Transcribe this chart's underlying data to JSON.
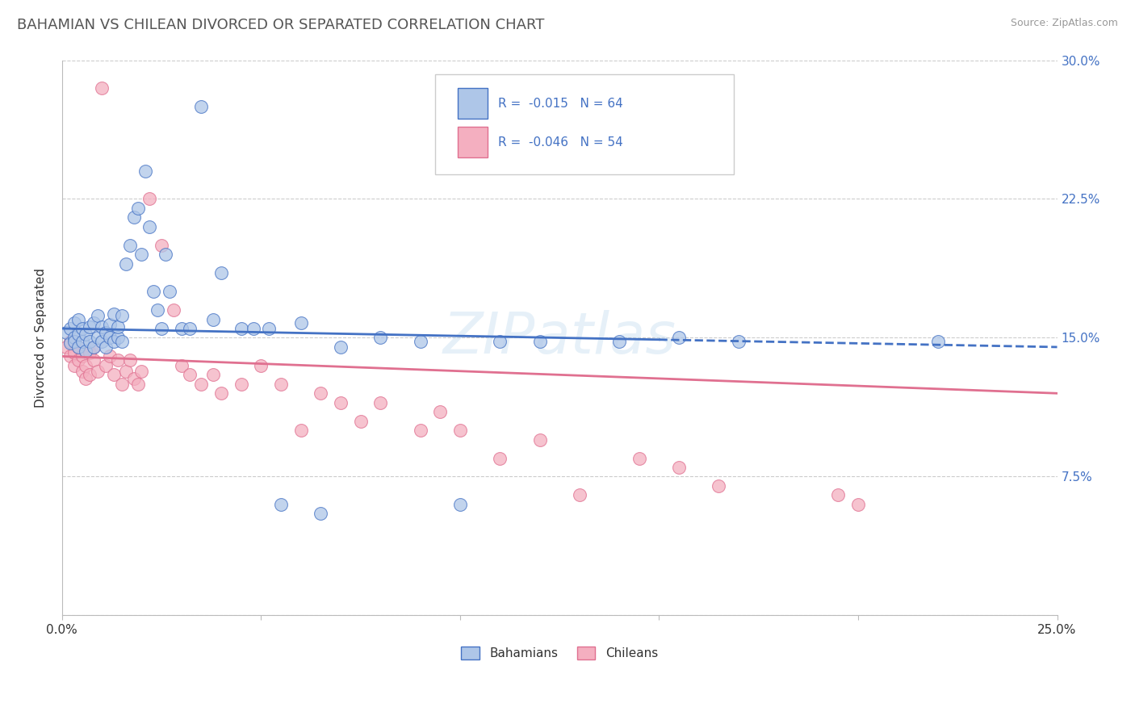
{
  "title": "BAHAMIAN VS CHILEAN DIVORCED OR SEPARATED CORRELATION CHART",
  "source": "Source: ZipAtlas.com",
  "ylabel": "Divorced or Separated",
  "xlim": [
    0.0,
    0.25
  ],
  "ylim": [
    0.0,
    0.3
  ],
  "xtick_positions": [
    0.0,
    0.05,
    0.1,
    0.15,
    0.2,
    0.25
  ],
  "xticklabels": [
    "0.0%",
    "",
    "",
    "",
    "",
    "25.0%"
  ],
  "ytick_positions": [
    0.0,
    0.075,
    0.15,
    0.225,
    0.3
  ],
  "yticklabels_right": [
    "",
    "7.5%",
    "15.0%",
    "22.5%",
    "30.0%"
  ],
  "legend_R_blue": "-0.015",
  "legend_N_blue": "64",
  "legend_R_pink": "-0.046",
  "legend_N_pink": "54",
  "blue_color": "#aec6e8",
  "pink_color": "#f4afc0",
  "line_blue": "#4472c4",
  "line_pink": "#e07090",
  "watermark": "ZIPatlas",
  "blue_x": [
    0.001,
    0.002,
    0.002,
    0.003,
    0.003,
    0.003,
    0.004,
    0.004,
    0.004,
    0.005,
    0.005,
    0.006,
    0.006,
    0.007,
    0.007,
    0.008,
    0.008,
    0.009,
    0.009,
    0.01,
    0.01,
    0.011,
    0.011,
    0.012,
    0.012,
    0.013,
    0.013,
    0.014,
    0.014,
    0.015,
    0.015,
    0.016,
    0.017,
    0.018,
    0.019,
    0.02,
    0.021,
    0.022,
    0.023,
    0.024,
    0.025,
    0.026,
    0.027,
    0.03,
    0.032,
    0.035,
    0.038,
    0.04,
    0.045,
    0.048,
    0.052,
    0.055,
    0.06,
    0.065,
    0.07,
    0.08,
    0.09,
    0.1,
    0.11,
    0.12,
    0.14,
    0.155,
    0.17,
    0.22
  ],
  "blue_y": [
    0.153,
    0.147,
    0.155,
    0.15,
    0.148,
    0.158,
    0.145,
    0.152,
    0.16,
    0.148,
    0.155,
    0.143,
    0.152,
    0.148,
    0.156,
    0.145,
    0.158,
    0.15,
    0.162,
    0.148,
    0.156,
    0.145,
    0.153,
    0.15,
    0.157,
    0.148,
    0.163,
    0.15,
    0.156,
    0.148,
    0.162,
    0.19,
    0.2,
    0.215,
    0.22,
    0.195,
    0.24,
    0.21,
    0.175,
    0.165,
    0.155,
    0.195,
    0.175,
    0.155,
    0.155,
    0.275,
    0.16,
    0.185,
    0.155,
    0.155,
    0.155,
    0.06,
    0.158,
    0.055,
    0.145,
    0.15,
    0.148,
    0.06,
    0.148,
    0.148,
    0.148,
    0.15,
    0.148,
    0.148
  ],
  "pink_x": [
    0.001,
    0.002,
    0.002,
    0.003,
    0.003,
    0.004,
    0.004,
    0.005,
    0.005,
    0.006,
    0.006,
    0.007,
    0.007,
    0.008,
    0.008,
    0.009,
    0.01,
    0.011,
    0.012,
    0.013,
    0.014,
    0.015,
    0.016,
    0.017,
    0.018,
    0.019,
    0.02,
    0.022,
    0.025,
    0.028,
    0.03,
    0.032,
    0.035,
    0.038,
    0.04,
    0.045,
    0.05,
    0.055,
    0.06,
    0.065,
    0.07,
    0.075,
    0.08,
    0.09,
    0.095,
    0.1,
    0.11,
    0.12,
    0.13,
    0.145,
    0.155,
    0.165,
    0.195,
    0.2
  ],
  "pink_y": [
    0.145,
    0.14,
    0.148,
    0.135,
    0.142,
    0.138,
    0.145,
    0.132,
    0.14,
    0.128,
    0.135,
    0.13,
    0.142,
    0.138,
    0.145,
    0.132,
    0.285,
    0.135,
    0.14,
    0.13,
    0.138,
    0.125,
    0.132,
    0.138,
    0.128,
    0.125,
    0.132,
    0.225,
    0.2,
    0.165,
    0.135,
    0.13,
    0.125,
    0.13,
    0.12,
    0.125,
    0.135,
    0.125,
    0.1,
    0.12,
    0.115,
    0.105,
    0.115,
    0.1,
    0.11,
    0.1,
    0.085,
    0.095,
    0.065,
    0.085,
    0.08,
    0.07,
    0.065,
    0.06
  ]
}
